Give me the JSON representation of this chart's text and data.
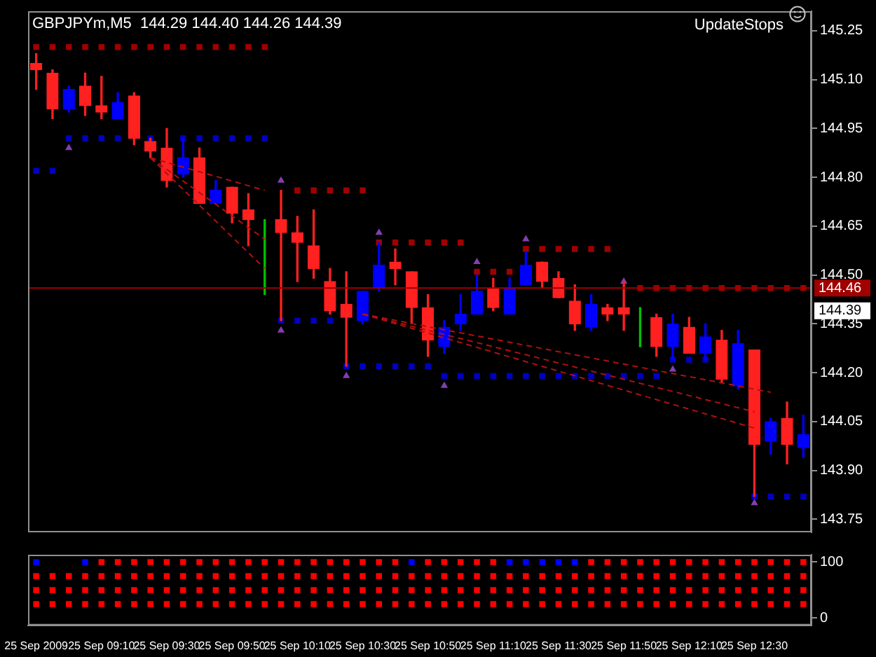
{
  "chart_data": [
    {
      "type": "candlestick",
      "title": "GBPJPYm,M5  144.29 144.40 144.26 144.39",
      "annotations": [
        "UpdateStops",
        {
          "text": "144.39",
          "y": 144.39
        }
      ],
      "categories": [
        null,
        null,
        null,
        null,
        null,
        null,
        null,
        null,
        null,
        null,
        null,
        null,
        null,
        null,
        null,
        null,
        null,
        null,
        null,
        null,
        null,
        null,
        null,
        null,
        null,
        null,
        null,
        null,
        null,
        null,
        null,
        null,
        null,
        null,
        null,
        null,
        null,
        null,
        null,
        null,
        null,
        null,
        null,
        null,
        null,
        null,
        null,
        null
      ],
      "ohlc": [
        [
          145.15,
          145.18,
          145.07,
          145.13
        ],
        [
          145.12,
          145.13,
          144.98,
          145.01
        ],
        [
          145.01,
          145.08,
          145.0,
          145.07
        ],
        [
          145.08,
          145.12,
          144.99,
          145.02
        ],
        [
          145.02,
          145.11,
          144.98,
          145.0
        ],
        [
          144.98,
          145.06,
          144.98,
          145.03
        ],
        [
          145.05,
          145.06,
          144.9,
          144.92
        ],
        [
          144.91,
          144.92,
          144.86,
          144.88
        ],
        [
          144.89,
          144.95,
          144.77,
          144.79
        ],
        [
          144.81,
          144.92,
          144.8,
          144.86
        ],
        [
          144.86,
          144.89,
          144.72,
          144.72
        ],
        [
          144.72,
          144.79,
          144.72,
          144.76
        ],
        [
          144.77,
          144.77,
          144.66,
          144.69
        ],
        [
          144.7,
          144.75,
          144.59,
          144.67
        ],
        [
          144.66,
          144.67,
          144.44,
          144.66
        ],
        [
          144.67,
          144.76,
          144.36,
          144.63
        ],
        [
          144.63,
          144.68,
          144.48,
          144.6
        ],
        [
          144.59,
          144.7,
          144.49,
          144.52
        ],
        [
          144.48,
          144.52,
          144.38,
          144.39
        ],
        [
          144.41,
          144.51,
          144.22,
          144.37
        ],
        [
          144.36,
          144.45,
          144.35,
          144.45
        ],
        [
          144.46,
          144.6,
          144.45,
          144.53
        ],
        [
          144.54,
          144.58,
          144.47,
          144.52
        ],
        [
          144.51,
          144.51,
          144.35,
          144.4
        ],
        [
          144.4,
          144.44,
          144.25,
          144.3
        ],
        [
          144.28,
          144.36,
          144.26,
          144.34
        ],
        [
          144.35,
          144.44,
          144.33,
          144.38
        ],
        [
          144.38,
          144.5,
          144.38,
          144.45
        ],
        [
          144.46,
          144.49,
          144.39,
          144.4
        ],
        [
          144.38,
          144.49,
          144.38,
          144.46
        ],
        [
          144.47,
          144.57,
          144.47,
          144.53
        ],
        [
          144.54,
          144.54,
          144.46,
          144.48
        ],
        [
          144.49,
          144.51,
          144.43,
          144.43
        ],
        [
          144.42,
          144.47,
          144.33,
          144.35
        ],
        [
          144.34,
          144.44,
          144.33,
          144.41
        ],
        [
          144.4,
          144.41,
          144.36,
          144.38
        ],
        [
          144.4,
          144.48,
          144.33,
          144.38
        ],
        [
          144.38,
          144.4,
          144.28,
          144.38
        ],
        [
          144.37,
          144.38,
          144.25,
          144.28
        ],
        [
          144.28,
          144.38,
          144.24,
          144.35
        ],
        [
          144.34,
          144.37,
          144.26,
          144.26
        ],
        [
          144.26,
          144.35,
          144.24,
          144.31
        ],
        [
          144.3,
          144.33,
          144.17,
          144.18
        ],
        [
          144.16,
          144.33,
          144.15,
          144.29
        ],
        [
          144.27,
          144.27,
          143.82,
          143.98
        ],
        [
          143.99,
          144.06,
          143.95,
          144.05
        ],
        [
          144.06,
          144.11,
          143.92,
          143.98
        ],
        [
          143.97,
          144.07,
          143.94,
          144.01
        ]
      ],
      "colors": [
        "#ff2020",
        "#ff2020",
        "#0000ff",
        "#ff2020",
        "#ff2020",
        "#0000ff",
        "#ff2020",
        "#ff2020",
        "#ff2020",
        "#0000ff",
        "#ff2020",
        "#0000ff",
        "#ff2020",
        "#ff2020",
        "#00c000",
        "#ff2020",
        "#ff2020",
        "#ff2020",
        "#ff2020",
        "#ff2020",
        "#0000ff",
        "#0000ff",
        "#ff2020",
        "#ff2020",
        "#ff2020",
        "#0000ff",
        "#0000ff",
        "#0000ff",
        "#ff2020",
        "#0000ff",
        "#0000ff",
        "#ff2020",
        "#ff2020",
        "#ff2020",
        "#0000ff",
        "#ff2020",
        "#ff2020",
        "#00c000",
        "#ff2020",
        "#0000ff",
        "#ff2020",
        "#0000ff",
        "#ff2020",
        "#0000ff",
        "#ff2020",
        "#0000ff",
        "#ff2020",
        "#0000ff"
      ],
      "series": [
        {
          "type": "scatter",
          "marker": "square",
          "color": "#a00000",
          "values": [
            145.2,
            145.2,
            145.2,
            145.2,
            145.2,
            145.2,
            145.2,
            145.2,
            145.2,
            145.2,
            145.2,
            145.2,
            145.2,
            145.2,
            145.2,
            null,
            144.76,
            144.76,
            144.76,
            144.76,
            144.76,
            144.6,
            144.6,
            144.6,
            144.6,
            144.6,
            144.6,
            144.51,
            144.51,
            144.51,
            144.58,
            144.58,
            144.58,
            144.58,
            144.58,
            144.58,
            null,
            144.46,
            144.46,
            144.46,
            144.46,
            144.46,
            144.46,
            144.46,
            144.46,
            144.46,
            144.46,
            144.46
          ]
        },
        {
          "type": "scatter",
          "marker": "square",
          "color": "#0000c0",
          "values": [
            144.82,
            144.82,
            144.92,
            144.92,
            144.92,
            144.92,
            null,
            144.92,
            null,
            144.92,
            144.92,
            144.92,
            144.92,
            144.92,
            144.92,
            144.36,
            144.36,
            144.36,
            144.36,
            144.22,
            144.22,
            144.22,
            144.22,
            144.22,
            144.22,
            144.19,
            144.19,
            144.19,
            144.19,
            144.19,
            144.19,
            144.19,
            144.19,
            144.19,
            144.19,
            144.19,
            144.19,
            144.19,
            144.19,
            144.24,
            144.24,
            144.24,
            null,
            null,
            143.82,
            143.82,
            143.82,
            143.82
          ]
        },
        {
          "type": "scatter",
          "marker": "triangle",
          "color": "#8040b0",
          "values": [
            null,
            null,
            null,
            null,
            null,
            null,
            null,
            null,
            null,
            null,
            null,
            null,
            null,
            null,
            null,
            144.79,
            null,
            null,
            null,
            null,
            null,
            144.63,
            null,
            null,
            null,
            null,
            null,
            144.54,
            null,
            null,
            144.61,
            null,
            null,
            null,
            null,
            null,
            144.48,
            null,
            null,
            null,
            null,
            null,
            null,
            null,
            null,
            null,
            null,
            null
          ]
        },
        {
          "type": "scatter",
          "marker": "triangle",
          "color": "#8040b0",
          "values": [
            null,
            null,
            144.89,
            null,
            null,
            null,
            null,
            null,
            null,
            null,
            null,
            null,
            null,
            null,
            null,
            144.33,
            null,
            null,
            null,
            144.19,
            null,
            null,
            null,
            null,
            null,
            144.16,
            null,
            null,
            null,
            null,
            null,
            null,
            null,
            null,
            null,
            null,
            null,
            null,
            null,
            144.21,
            null,
            null,
            null,
            null,
            143.8,
            null,
            null,
            null
          ]
        },
        {
          "type": "line",
          "line_style": "dashed",
          "color": "#b01010",
          "values": [
            null,
            null,
            null,
            null,
            null,
            null,
            null,
            144.86,
            null,
            null,
            null,
            null,
            null,
            null,
            144.76,
            null,
            null,
            null,
            null,
            null,
            null,
            null,
            null,
            null,
            null,
            null,
            null,
            null,
            null,
            null,
            null,
            null,
            null,
            null,
            null,
            null,
            null,
            null,
            null,
            null,
            null,
            null,
            null,
            null,
            null,
            null,
            null,
            null
          ]
        },
        {
          "type": "line",
          "line_style": "dashed",
          "color": "#b01010",
          "values": [
            null,
            null,
            null,
            null,
            null,
            null,
            null,
            144.86,
            null,
            null,
            null,
            null,
            null,
            null,
            144.61,
            null,
            null,
            null,
            null,
            null,
            null,
            null,
            null,
            null,
            null,
            null,
            null,
            null,
            null,
            null,
            null,
            null,
            null,
            null,
            null,
            null,
            null,
            null,
            null,
            null,
            null,
            null,
            null,
            null,
            null,
            null,
            null,
            null
          ]
        },
        {
          "type": "line",
          "line_style": "dashed",
          "color": "#b01010",
          "values": [
            null,
            null,
            null,
            null,
            null,
            null,
            null,
            144.86,
            null,
            null,
            null,
            null,
            null,
            null,
            144.52,
            null,
            null,
            null,
            null,
            null,
            null,
            null,
            null,
            null,
            null,
            null,
            null,
            null,
            null,
            null,
            null,
            null,
            null,
            null,
            null,
            null,
            null,
            null,
            null,
            null,
            null,
            null,
            null,
            null,
            null,
            null,
            null,
            null
          ]
        },
        {
          "type": "line",
          "line_style": "dashed",
          "color": "#b01010",
          "values": [
            null,
            null,
            null,
            null,
            null,
            null,
            null,
            null,
            null,
            null,
            null,
            null,
            null,
            null,
            null,
            null,
            null,
            null,
            null,
            null,
            144.38,
            null,
            null,
            null,
            null,
            null,
            null,
            null,
            null,
            null,
            null,
            null,
            null,
            null,
            null,
            null,
            null,
            null,
            null,
            null,
            null,
            null,
            null,
            null,
            null,
            144.14,
            null,
            null
          ]
        },
        {
          "type": "line",
          "line_style": "dashed",
          "color": "#b01010",
          "values": [
            null,
            null,
            null,
            null,
            null,
            null,
            null,
            null,
            null,
            null,
            null,
            null,
            null,
            null,
            null,
            null,
            null,
            null,
            null,
            null,
            144.38,
            null,
            null,
            null,
            null,
            null,
            null,
            null,
            null,
            null,
            null,
            null,
            null,
            null,
            null,
            null,
            null,
            null,
            null,
            null,
            null,
            null,
            null,
            null,
            144.08,
            null,
            null,
            null
          ]
        },
        {
          "type": "line",
          "line_style": "dashed",
          "color": "#b01010",
          "values": [
            null,
            null,
            null,
            null,
            null,
            null,
            null,
            null,
            null,
            null,
            null,
            null,
            null,
            null,
            null,
            null,
            null,
            null,
            null,
            null,
            144.38,
            null,
            null,
            null,
            null,
            null,
            null,
            null,
            null,
            null,
            null,
            null,
            null,
            null,
            null,
            null,
            null,
            null,
            null,
            null,
            null,
            null,
            null,
            null,
            144.03,
            null,
            null,
            null
          ]
        }
      ],
      "ylim": [
        143.71,
        145.31
      ],
      "yticks": [
        145.25,
        {
          "value": 145.1,
          "label": "145.10"
        },
        144.95,
        {
          "value": 144.8,
          "label": "144.80"
        },
        144.65,
        {
          "value": 144.5,
          "label": "144.50"
        },
        144.35,
        {
          "value": 144.2,
          "label": "144.20"
        },
        144.05,
        {
          "value": 143.9,
          "label": "143.90"
        },
        143.75
      ],
      "ref_lines": [
        {
          "axis": "y",
          "value": 144.46,
          "label": "144.46",
          "color": "#a00000"
        }
      ],
      "tick_labels": "y"
    },
    {
      "type": "scatter",
      "marker": "square",
      "categories": [
        "25 Sep 2009",
        null,
        null,
        null,
        "25 Sep 09:10",
        null,
        null,
        null,
        "25 Sep 09:30",
        null,
        null,
        null,
        "25 Sep 09:50",
        null,
        null,
        null,
        "25 Sep 10:10",
        null,
        null,
        null,
        "25 Sep 10:30",
        null,
        null,
        null,
        "25 Sep 10:50",
        null,
        null,
        null,
        "25 Sep 11:10",
        null,
        null,
        null,
        "25 Sep 11:30",
        null,
        null,
        null,
        "25 Sep 11:50",
        null,
        null,
        null,
        "25 Sep 12:10",
        null,
        null,
        null,
        "25 Sep 12:30",
        null,
        null,
        null
      ],
      "series": [
        {
          "color": "#0000ff",
          "values": [
            100,
            null,
            null,
            100,
            null,
            null,
            null,
            null,
            null,
            null,
            null,
            null,
            null,
            null,
            null,
            null,
            null,
            null,
            null,
            null,
            null,
            null,
            null,
            100,
            null,
            null,
            null,
            null,
            null,
            100,
            100,
            100,
            100,
            100,
            null,
            null,
            null,
            null,
            null,
            null,
            null,
            null,
            null,
            null,
            null,
            null,
            null,
            null
          ]
        },
        {
          "color": "#ff0000",
          "values": [
            null,
            null,
            null,
            null,
            100,
            100,
            100,
            100,
            100,
            100,
            100,
            100,
            100,
            100,
            100,
            100,
            100,
            100,
            100,
            100,
            100,
            100,
            100,
            null,
            100,
            100,
            100,
            100,
            100,
            null,
            null,
            null,
            null,
            null,
            100,
            100,
            100,
            100,
            100,
            100,
            100,
            100,
            100,
            100,
            100,
            100,
            100,
            100
          ]
        },
        {
          "color": "#ff0000",
          "values": [
            75,
            75,
            75,
            75,
            75,
            75,
            75,
            75,
            75,
            75,
            75,
            75,
            75,
            75,
            75,
            75,
            75,
            75,
            75,
            75,
            75,
            75,
            75,
            75,
            75,
            75,
            75,
            75,
            75,
            75,
            75,
            75,
            75,
            75,
            75,
            75,
            75,
            75,
            75,
            75,
            75,
            75,
            75,
            75,
            75,
            75,
            75,
            75
          ]
        },
        {
          "color": "#ff0000",
          "values": [
            50,
            50,
            50,
            50,
            50,
            50,
            50,
            50,
            50,
            50,
            50,
            50,
            50,
            50,
            50,
            50,
            50,
            50,
            50,
            50,
            50,
            50,
            50,
            50,
            50,
            50,
            50,
            50,
            50,
            50,
            50,
            50,
            50,
            50,
            50,
            50,
            50,
            50,
            50,
            50,
            50,
            50,
            50,
            50,
            50,
            50,
            50,
            50
          ]
        },
        {
          "color": "#ff0000",
          "values": [
            25,
            25,
            25,
            25,
            25,
            25,
            25,
            25,
            25,
            25,
            25,
            25,
            25,
            25,
            25,
            25,
            25,
            25,
            25,
            25,
            25,
            25,
            25,
            25,
            25,
            25,
            25,
            25,
            25,
            25,
            25,
            25,
            25,
            25,
            25,
            25,
            25,
            25,
            25,
            25,
            25,
            25,
            25,
            25,
            25,
            25,
            25,
            25
          ]
        }
      ],
      "ylim": [
        -13,
        113
      ],
      "yticks": [
        0,
        100
      ]
    }
  ]
}
